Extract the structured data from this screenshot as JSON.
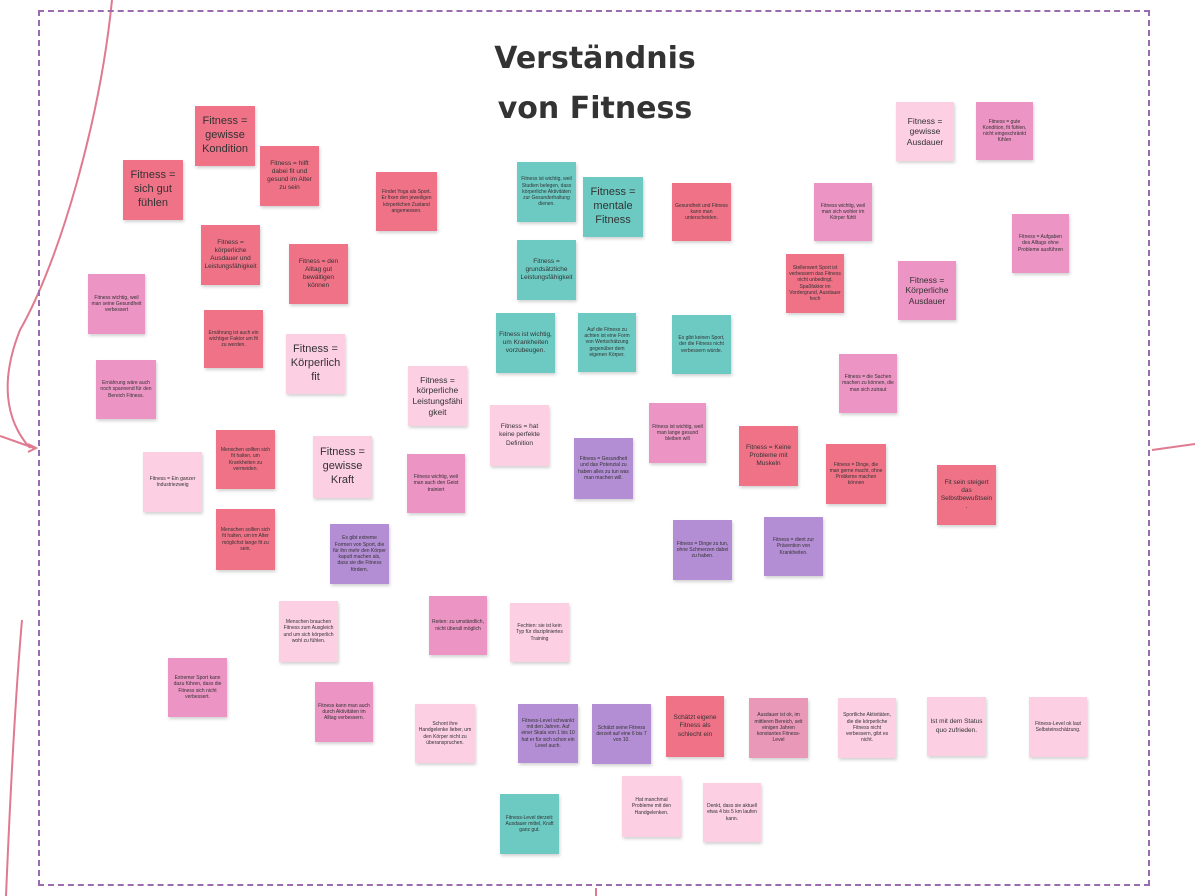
{
  "board": {
    "title_line1": "Verständnis",
    "title_line2": "von Fitness"
  },
  "notes": {
    "n1": "Fitness = gewisse Kondition",
    "n2": "Fitness = hilft dabei fit und gesund im Alter zu sein",
    "n3": "Fitness = sich gut fühlen",
    "n4": "Findet Yoga als Sport. Er fixen den jeweiligen körperlichen Zustand angemessen.",
    "n5": "Fitness ist wichtig, weil Studien belegen, dass körperliche Aktivitäten zur Gesunderhaltung dienen.",
    "n6": "Fitness = mentale Fitness",
    "n7": "Gesundheit und Fitness kann man unterscheiden.",
    "n8": "Fitness = gewisse Ausdauer",
    "n9": "Fitness = gute Kondition, fit fühlen, nicht eingeschränkt fühlen",
    "n10": "Fitness = körperliche Ausdauer und Leistungsfähigkeit",
    "n11": "Fitness = den Alltag gut bewältigen können",
    "n12": "Fitness = grundsätzliche Leistungsfähigkeit",
    "n13": "Fitness wichtig, weil man sich wohler im Körper fühlt",
    "n14": "Fitness = Aufgaben des Alltags ohne Probleme ausführen",
    "n15": "Stellenwert Sport ist verbessern das Fitness nicht unbedingt, Spaßfaktor im Vordergrund, Ausdauer hoch",
    "n16": "Fitness = Körperliche Ausdauer",
    "n17": "Fitness wichtig, weil man seine Gesundheit verbessert",
    "n18": "Ernährung ist auch ein wichtiger Faktor um fit zu werden.",
    "n19": "Fitness = Körperlich fit",
    "n20": "Fitness ist wichtig, um Krankheiten vorzubeugen.",
    "n21": "Auf die Fitness zu achten ist eine Form von Wertschätzung gegenüber dem eigenen Körper.",
    "n22": "Es gibt keinen Sport, der die Fitness nicht verbessern würde.",
    "n23": "Fitness = die Sachen machen zu können, die man sich zutraut",
    "n24": "Ernährung wäre auch noch spannend für den Bereich Fitness.",
    "n25": "Fitness = körperliche Leistungsfähigkeit",
    "n26": "Fitness = hat keine perfekte Definition",
    "n27": "Fitness ist wichtig, weil man lange gesund bleiben will",
    "n28": "Fitness = Keine Probleme mit Muskeln",
    "n29": "Fitness = Dinge, die man gerne macht, ohne Probleme machen können",
    "n30": "Menschen sollten sich fit halten, um Krankheiten zu vermeiden.",
    "n31": "Fitness = Ein ganzer Industriezweig",
    "n32": "Fitness = gewisse Kraft",
    "n33": "Fitness wichtig, weil man auch den Geist trainiert",
    "n34": "Fitness = Gesundheit und das Potenzial zu haben alles zu tun was man machen will.",
    "n35": "Fit sein steigert das Selbstbewußtsein.",
    "n36": "Menschen sollten sich fit halten, um im Alter möglichst lange fit zu sein.",
    "n37": "Es gibt extreme Formen von Sport, die für ihn mehr den Körper kaputt machen als, dass sie die Fitness fördern.",
    "n38": "Fitness = Dinge zu tun, ohne Schmerzen dabei zu haben.",
    "n39": "Fitness = dient zur Prävention von Krankheiten.",
    "n40": "Menschen brauchen Fitness zum Ausgleich und um sich körperlich wohl zu fühlen.",
    "n41": "Reiten: zu umständlich, nicht überall möglich",
    "n42": "Fechten: sie ist kein Typ für diszipliniertes Training",
    "n43": "Extremer Sport kann dazu führen, dass die Fitness sich nicht verbessert.",
    "n44": "Fitness kann man auch durch Aktivitäten im Alltag verbessern.",
    "n45": "Schont ihre Handgelenke lieber, um den Körper nicht zu überanspruchen.",
    "n46": "Fitness-Level schwankt mit den Jahren. Auf einer Skala von 1 bis 10 hat er für sich schon ein Level auch.",
    "n47": "Schätzt seine Fitness derzeit auf eine 6 bis 7 von 10.",
    "n48": "Schätzt eigene Fitness als schlecht ein",
    "n49": "Ausdauer ist ok, im mittleren Bereich, seit einigen Jahren konstantes Fitness-Level",
    "n50": "Sportliche Aktivitäten, die die körperliche Fitness nicht verbessern, gibt es nicht.",
    "n51": "Ist mit dem Status quo zufrieden.",
    "n52": "Fitness-Level ok laut Selbsteinschätzung.",
    "n53": "Hat manchmal Probleme mit den Handgelenken.",
    "n54": "Denkt, dass sie aktuell etwa 4 bis 5 km laufen kann.",
    "n55": "Fitness-Level derzeit: Ausdauer mittel, Kraft ganz gut."
  },
  "colors": {
    "red": "#f07287",
    "pink": "#ec94c4",
    "light_pink": "#fccfe2",
    "teal": "#6ccac3",
    "purple": "#b48ed4",
    "frame": "#9b6bb0",
    "connector": "#e07a90"
  }
}
